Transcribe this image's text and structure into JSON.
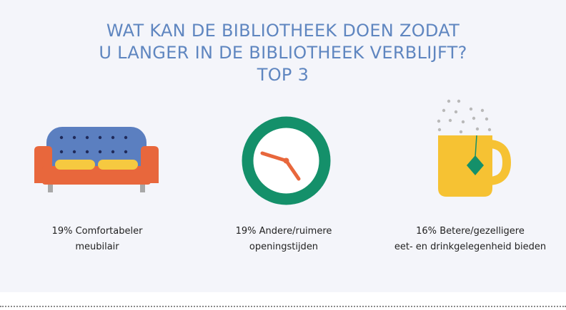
{
  "title": {
    "line1": "WAT KAN DE BIBLIOTHEEK DOEN ZODAT",
    "line2": "U LANGER IN DE BIBLIOTHEEK VERBLIJFT?",
    "line3": "TOP 3"
  },
  "items": [
    {
      "percent": "19%",
      "line1": "Comfortabeler",
      "line2": "meubilair",
      "icon": "sofa-icon"
    },
    {
      "percent": "19%",
      "line1": "Andere/ruimere",
      "line2": "openingstijden",
      "icon": "clock-icon"
    },
    {
      "percent": "16%",
      "line1": "Betere/gezelligere",
      "line2": "eet- en drinkgelegenheid bieden",
      "icon": "tea-mug-icon"
    }
  ],
  "colors": {
    "title": "#5f86c0",
    "sofa_body": "#e8673c",
    "sofa_back": "#5b7fc0",
    "cushion": "#f6c940",
    "clock_ring": "#14906a",
    "clock_hands": "#e8673c",
    "mug": "#f6c233",
    "tag": "#14906a"
  }
}
